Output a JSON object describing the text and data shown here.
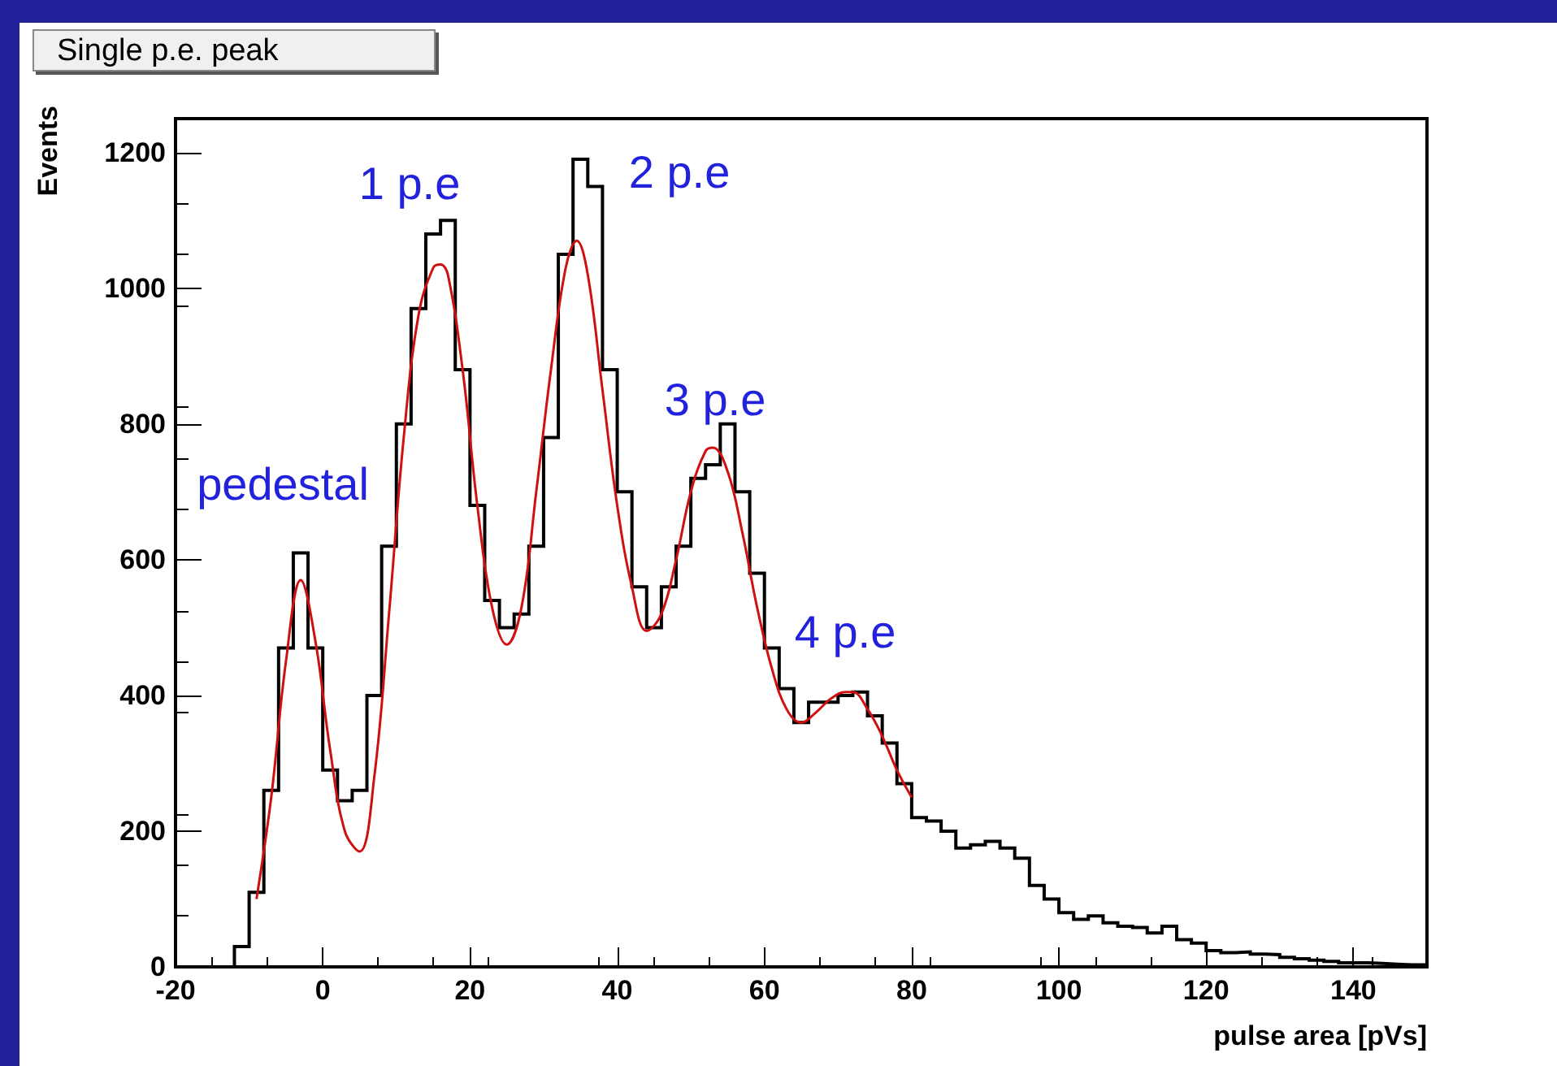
{
  "chart_data": {
    "type": "histogram",
    "title": "Single p.e. peak",
    "xlabel": "pulse area [pVs]",
    "ylabel": "Events",
    "bins": [
      -12,
      -10,
      -8,
      -6,
      -4,
      -2,
      0,
      2,
      4,
      6,
      8,
      10,
      12,
      14,
      16,
      18,
      20,
      22,
      24,
      26,
      28,
      30,
      32,
      34,
      36,
      38,
      40,
      42,
      44,
      46,
      48,
      50,
      52,
      54,
      56,
      58,
      60,
      62,
      64,
      66,
      68,
      70,
      72,
      74,
      76,
      78,
      80,
      82,
      84,
      86,
      88,
      90,
      92,
      94,
      96,
      98,
      100,
      102,
      104,
      106,
      108,
      110,
      112,
      114,
      116,
      118,
      120,
      122,
      124,
      126,
      128,
      130,
      132,
      134,
      136,
      138,
      140,
      142,
      144,
      146,
      148,
      150
    ],
    "values": [
      30,
      110,
      260,
      470,
      610,
      470,
      290,
      245,
      260,
      400,
      620,
      800,
      970,
      1080,
      1100,
      880,
      680,
      540,
      500,
      520,
      620,
      780,
      1050,
      1190,
      1150,
      880,
      700,
      560,
      500,
      560,
      620,
      720,
      740,
      800,
      700,
      580,
      470,
      410,
      360,
      390,
      390,
      400,
      405,
      370,
      330,
      270,
      220,
      215,
      200,
      175,
      180,
      185,
      175,
      160,
      120,
      100,
      80,
      70,
      75,
      65,
      60,
      58,
      50,
      60,
      40,
      35,
      24,
      21,
      22,
      19,
      18,
      14,
      12,
      10,
      8,
      6,
      6,
      5,
      4,
      3,
      3
    ],
    "color": "#000000",
    "series": [
      {
        "type": "line",
        "color": "#d01010",
        "x": [
          -9,
          -7,
          -5,
          -3,
          -1,
          1,
          3,
          5,
          7,
          9,
          11,
          13,
          15,
          16,
          17,
          19,
          21,
          23,
          25,
          27,
          29,
          31,
          33,
          34.5,
          36,
          38,
          40,
          42,
          44,
          46,
          48,
          50,
          52,
          53,
          55,
          57,
          59,
          61,
          63,
          65,
          67,
          69,
          71,
          72,
          74,
          76,
          78,
          80
        ],
        "values": [
          100,
          250,
          450,
          570,
          480,
          320,
          200,
          170,
          280,
          520,
          780,
          960,
          1030,
          1035,
          1020,
          880,
          680,
          530,
          475,
          530,
          700,
          880,
          1030,
          1070,
          1020,
          850,
          680,
          560,
          495,
          520,
          600,
          700,
          760,
          765,
          730,
          640,
          530,
          440,
          380,
          360,
          375,
          395,
          405,
          405,
          380,
          340,
          290,
          250
        ]
      }
    ],
    "xlim": [
      -20,
      150
    ],
    "xticks": [
      -20,
      0,
      20,
      40,
      60,
      80,
      100,
      120,
      140
    ],
    "ylim": [
      0,
      1250
    ],
    "yticks": [
      0,
      200,
      400,
      600,
      800,
      1000,
      1200
    ],
    "grid": false,
    "marker": "none",
    "line_style": "solid",
    "annotations": [
      "pedestal",
      "1 p.e",
      "2 p.e",
      "3 p.e",
      "4 p.e"
    ]
  }
}
